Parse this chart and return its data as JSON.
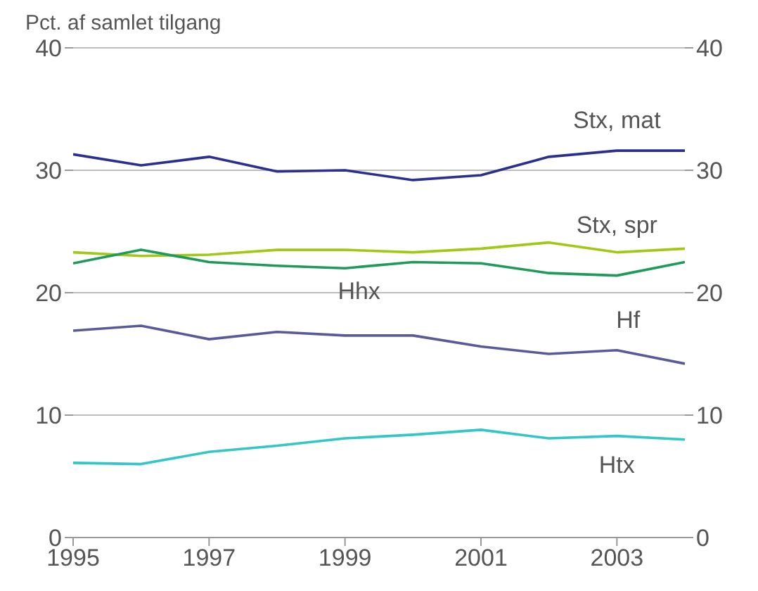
{
  "chart_data": {
    "type": "line",
    "ylabel": "Pct. af samlet tilgang",
    "x": [
      1995,
      1996,
      1997,
      1998,
      1999,
      2000,
      2001,
      2002,
      2003,
      2004
    ],
    "xlim": [
      1995,
      2004
    ],
    "xticks": [
      1995,
      1997,
      1999,
      2001,
      2003
    ],
    "ylim": [
      0,
      40
    ],
    "yticks": [
      0,
      10,
      20,
      30,
      40
    ],
    "y2lim": [
      0,
      40
    ],
    "y2ticks": [
      0,
      10,
      20,
      30,
      40
    ],
    "grid": "y",
    "marker": "none",
    "line_style": "solid",
    "series": [
      {
        "name": "Stx, mat",
        "color": "#2b2f8f",
        "values": [
          31.3,
          30.4,
          31.1,
          29.9,
          30.0,
          29.2,
          29.6,
          31.1,
          31.6,
          31.6
        ]
      },
      {
        "name": "Stx, spr",
        "color": "#a0c814",
        "values": [
          23.3,
          23.0,
          23.1,
          23.5,
          23.5,
          23.3,
          23.6,
          24.1,
          23.3,
          23.6
        ]
      },
      {
        "name": "Hhx",
        "color": "#1e9a5a",
        "values": [
          22.4,
          23.5,
          22.5,
          22.2,
          22.0,
          22.5,
          22.4,
          21.6,
          21.4,
          22.5
        ]
      },
      {
        "name": "Hf",
        "color": "#5a5a9a",
        "values": [
          16.9,
          17.3,
          16.2,
          16.8,
          16.5,
          16.5,
          15.6,
          15.0,
          15.3,
          14.2
        ]
      },
      {
        "name": "Htx",
        "color": "#33c6c6",
        "values": [
          6.1,
          6.0,
          7.0,
          7.5,
          8.1,
          8.4,
          8.8,
          8.1,
          8.3,
          8.0
        ]
      }
    ]
  }
}
